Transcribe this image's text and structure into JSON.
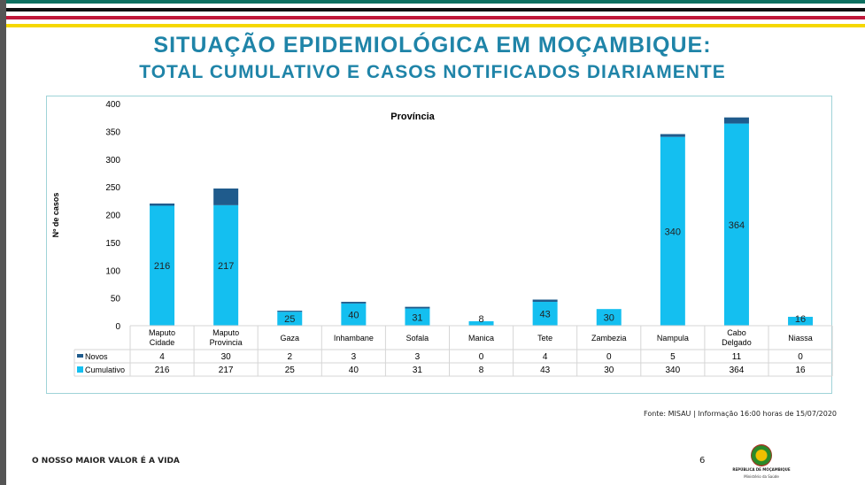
{
  "header": {
    "title": "SITUAÇÃO EPIDEMIOLÓGICA EM MOÇAMBIQUE:",
    "subtitle": "TOTAL CUMULATIVO E CASOS NOTIFICADOS DIARIAMENTE",
    "stripe_colors": [
      "#0d7060",
      "#111111",
      "#c0183a",
      "#f5d800"
    ]
  },
  "chart_data": {
    "type": "bar",
    "stacked": true,
    "title": "Província",
    "ylabel": "Nº de casos",
    "ylim": [
      0,
      400
    ],
    "yticks": [
      0,
      50,
      100,
      150,
      200,
      250,
      300,
      350,
      400
    ],
    "grid": false,
    "legend": "table-bottom",
    "categories": [
      "Maputo Cidade",
      "Maputo Provincia",
      "Gaza",
      "Inhambane",
      "Sofala",
      "Manica",
      "Tete",
      "Zambezia",
      "Nampula",
      "Cabo Delgado",
      "Niassa"
    ],
    "category_lines": [
      [
        "Maputo",
        "Cidade"
      ],
      [
        "Maputo",
        "Provincia"
      ],
      [
        "Gaza"
      ],
      [
        "Inhambane"
      ],
      [
        "Sofala"
      ],
      [
        "Manica"
      ],
      [
        "Tete"
      ],
      [
        "Zambezia"
      ],
      [
        "Nampula"
      ],
      [
        "Cabo",
        "Delgado"
      ],
      [
        "Niassa"
      ]
    ],
    "series": [
      {
        "name": "Cumulativo",
        "color": "#14bff0",
        "values": [
          216,
          217,
          25,
          40,
          31,
          8,
          43,
          30,
          340,
          364,
          16
        ]
      },
      {
        "name": "Novos",
        "color": "#1f5b8c",
        "values": [
          4,
          30,
          2,
          3,
          3,
          0,
          4,
          0,
          5,
          11,
          0
        ]
      }
    ]
  },
  "footer": {
    "source": "Fonte: MISAU | Informação 16:00 horas de 15/07/2020",
    "motto": "O NOSSO MAIOR VALOR É A VIDA",
    "page": "6",
    "logo_text": "REPÚBLICA DE MOÇAMBIQUE",
    "ministry": "Ministério da Saúde"
  }
}
